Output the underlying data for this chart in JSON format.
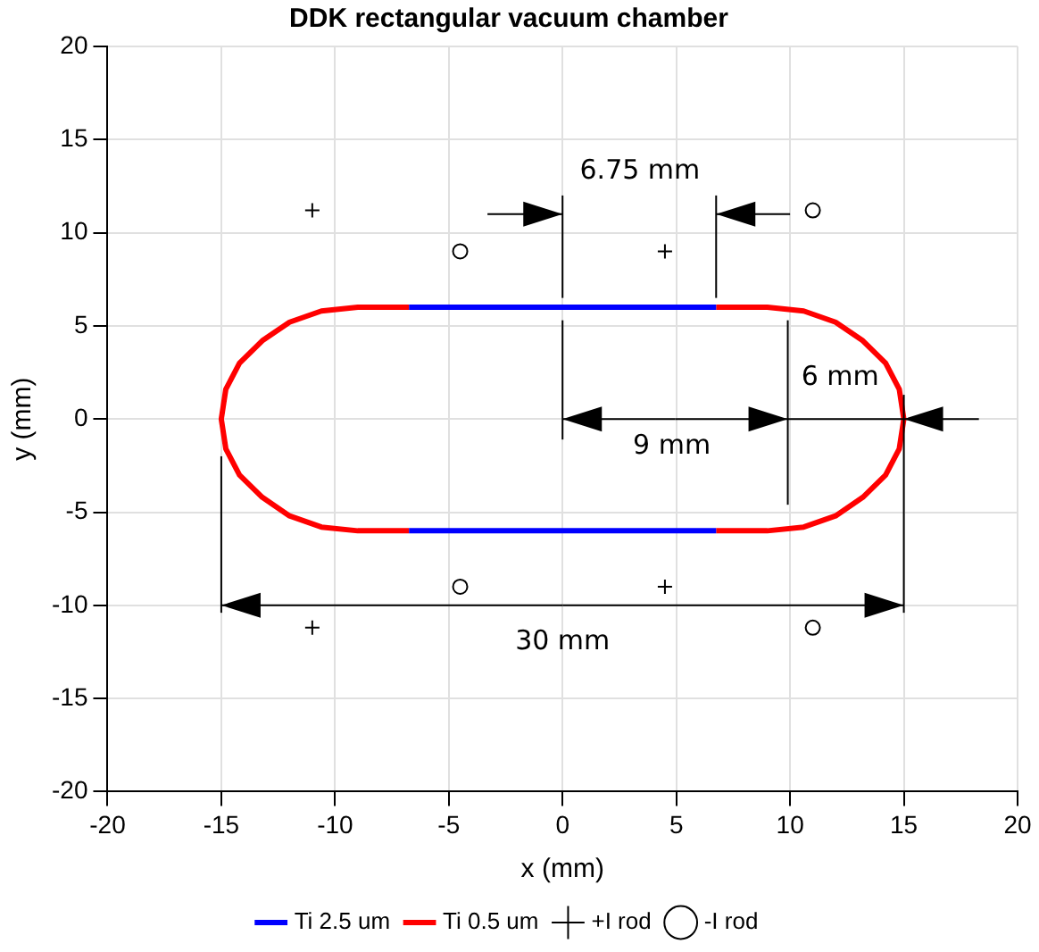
{
  "chart_data": {
    "type": "line",
    "title": "DDK rectangular vacuum chamber",
    "xlabel": "x (mm)",
    "ylabel": "y (mm)",
    "xlim": [
      -20,
      20
    ],
    "ylim": [
      -20,
      20
    ],
    "xticks": [
      -20,
      -15,
      -10,
      -5,
      0,
      5,
      10,
      15,
      20
    ],
    "yticks": [
      -20,
      -15,
      -10,
      -5,
      0,
      5,
      10,
      15,
      20
    ],
    "grid": true,
    "legend": "bottom",
    "line_style": "solid",
    "series": [
      {
        "name": "Ti 2.5 um",
        "type": "line",
        "color": "#0000ff",
        "x": [
          -6.75,
          6.75
        ],
        "values": [
          6,
          6
        ]
      },
      {
        "type": "line",
        "color": "#0000ff",
        "x": [
          -6.75,
          6.75
        ],
        "values": [
          -6,
          -6
        ]
      },
      {
        "name": "Ti 0.5 um",
        "type": "line",
        "color": "#ff0000",
        "x": [
          6.75,
          9,
          10.6,
          12,
          13.2,
          14.2,
          14.8,
          15,
          14.8,
          14.2,
          13.2,
          12,
          10.6,
          9,
          6.75
        ],
        "values": [
          6,
          6,
          5.8,
          5.2,
          4.2,
          3,
          1.6,
          0,
          -1.6,
          -3,
          -4.2,
          -5.2,
          -5.8,
          -6,
          -6
        ]
      },
      {
        "type": "line",
        "color": "#ff0000",
        "x": [
          -6.75,
          -9,
          -10.6,
          -12,
          -13.2,
          -14.2,
          -14.8,
          -15,
          -14.8,
          -14.2,
          -13.2,
          -12,
          -10.6,
          -9,
          -6.75
        ],
        "values": [
          -6,
          -6,
          -5.8,
          -5.2,
          -4.2,
          -3,
          -1.6,
          0,
          1.6,
          3,
          4.2,
          5.2,
          5.8,
          6,
          6
        ]
      },
      {
        "name": "+I rod",
        "type": "scatter",
        "marker": "cross",
        "color": "#000000",
        "x": [
          -11,
          4.5,
          4.5,
          -11
        ],
        "values": [
          11.2,
          9,
          -9,
          -11.2
        ]
      },
      {
        "name": "-I rod",
        "type": "scatter",
        "marker": "circle",
        "color": "#000000",
        "x": [
          -4.5,
          11,
          -4.5,
          11
        ],
        "values": [
          9,
          11.2,
          -9,
          -11.2
        ]
      }
    ],
    "annotations": [
      {
        "text": "6.75 mm",
        "x": 6.75,
        "y": 6
      },
      "9 mm",
      "6 mm",
      "30 mm"
    ]
  }
}
